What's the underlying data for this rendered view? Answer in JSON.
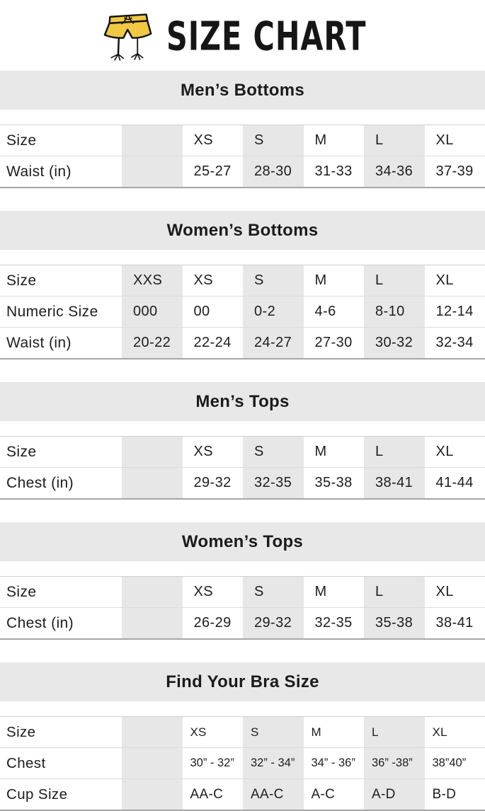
{
  "header": {
    "title": "SIZE CHART",
    "icon": "swim-shorts-doodle-icon",
    "icon_color": "#f0c844"
  },
  "theme": {
    "band_background": "#e8e8e8",
    "column_shade": "#e7e7e7",
    "row_border": "#dcdcdc",
    "table_bottom_border": "#a6a6a6",
    "text_color": "#1d1d1d"
  },
  "sections": [
    {
      "title": "Men’s Bottoms",
      "rows": [
        {
          "label": "Size",
          "values": [
            "",
            "XS",
            "S",
            "M",
            "L",
            "XL"
          ]
        },
        {
          "label": "Waist (in)",
          "values": [
            "",
            "25-27",
            "28-30",
            "31-33",
            "34-36",
            "37-39"
          ]
        }
      ]
    },
    {
      "title": "Women’s Bottoms",
      "rows": [
        {
          "label": "Size",
          "values": [
            "XXS",
            "XS",
            "S",
            "M",
            "L",
            "XL"
          ]
        },
        {
          "label": "Numeric Size",
          "values": [
            "000",
            "00",
            "0-2",
            "4-6",
            "8-10",
            "12-14"
          ]
        },
        {
          "label": "Waist (in)",
          "values": [
            "20-22",
            "22-24",
            "24-27",
            "27-30",
            "30-32",
            "32-34"
          ]
        }
      ]
    },
    {
      "title": "Men’s Tops",
      "rows": [
        {
          "label": "Size",
          "values": [
            "",
            "XS",
            "S",
            "M",
            "L",
            "XL"
          ]
        },
        {
          "label": "Chest (in)",
          "values": [
            "",
            "29-32",
            "32-35",
            "35-38",
            "38-41",
            "41-44"
          ]
        }
      ]
    },
    {
      "title": "Women’s Tops",
      "rows": [
        {
          "label": "Size",
          "values": [
            "",
            "XS",
            "S",
            "M",
            "L",
            "XL"
          ]
        },
        {
          "label": "Chest (in)",
          "values": [
            "",
            "26-29",
            "29-32",
            "32-35",
            "35-38",
            "38-41"
          ]
        }
      ]
    },
    {
      "title": "Find Your Bra Size",
      "compact": true,
      "rows": [
        {
          "label": "Size",
          "values": [
            "",
            "XS",
            "S",
            "M",
            "L",
            "XL"
          ]
        },
        {
          "label": "Chest",
          "values": [
            "",
            "30” - 32”",
            "32” - 34”",
            "34” - 36”",
            "36” -38”",
            "38”40”"
          ]
        },
        {
          "label": "Cup Size",
          "values": [
            "",
            "AA-C",
            "AA-C",
            "A-C",
            "A-D",
            "B-D"
          ]
        }
      ]
    }
  ]
}
